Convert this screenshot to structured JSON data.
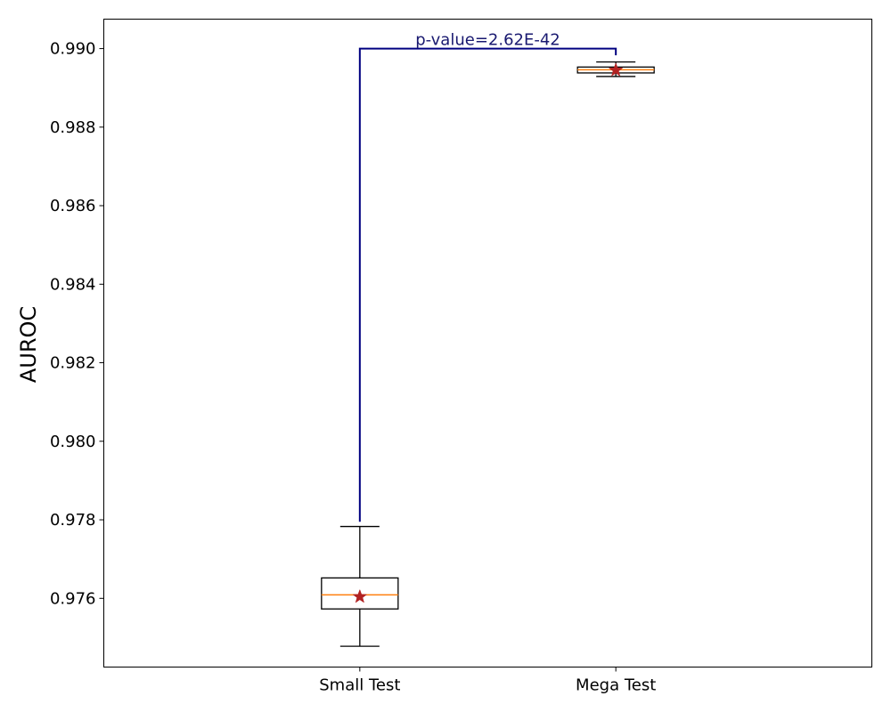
{
  "chart_data": {
    "type": "box",
    "title": "",
    "xlabel": "",
    "ylabel": "AUROC",
    "ylim": [
      0.97425,
      0.99075
    ],
    "yticks": [
      0.976,
      0.978,
      0.98,
      0.982,
      0.984,
      0.986,
      0.988,
      0.99
    ],
    "ytick_labels": [
      "0.976",
      "0.978",
      "0.980",
      "0.982",
      "0.984",
      "0.986",
      "0.988",
      "0.990"
    ],
    "grid": false,
    "categories": [
      "Small Test",
      "Mega Test"
    ],
    "boxes": [
      {
        "category": "Small Test",
        "whisker_low": 0.97478,
        "q1": 0.97573,
        "median": 0.97609,
        "q3": 0.97652,
        "whisker_high": 0.97783,
        "mean": 0.97604
      },
      {
        "category": "Mega Test",
        "whisker_low": 0.98929,
        "q1": 0.98938,
        "median": 0.98946,
        "q3": 0.98953,
        "whisker_high": 0.98966,
        "mean": 0.98945
      }
    ],
    "annotation": {
      "text": "p-value=2.62E-42",
      "from": "Small Test",
      "to": "Mega Test",
      "bracket_top": 0.99,
      "left_start": 0.97795,
      "right_start": 0.98983
    },
    "colors": {
      "box": "#000000",
      "median": "#ff7f0e",
      "mean_marker": "#b22222",
      "bracket": "#000080",
      "annotation_text": "#191970"
    }
  }
}
